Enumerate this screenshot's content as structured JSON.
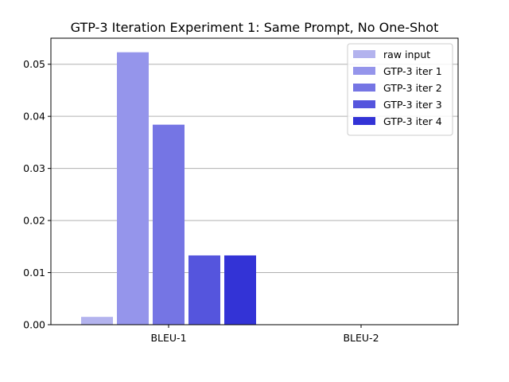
{
  "chart_data": {
    "type": "bar",
    "title": "GTP-3 Iteration Experiment 1: Same Prompt, No One-Shot",
    "categories": [
      "BLEU-1",
      "BLEU-2"
    ],
    "series": [
      {
        "name": "raw input",
        "color": "#b3b3ee",
        "values": [
          0.0015,
          0.0
        ]
      },
      {
        "name": "GTP-3 iter 1",
        "color": "#9595eb",
        "values": [
          0.0523,
          0.0
        ]
      },
      {
        "name": "GTP-3 iter 2",
        "color": "#7575e4",
        "values": [
          0.0384,
          0.0
        ]
      },
      {
        "name": "GTP-3 iter 3",
        "color": "#5555dd",
        "values": [
          0.0133,
          0.0
        ]
      },
      {
        "name": "GTP-3 iter 4",
        "color": "#3333d6",
        "values": [
          0.0133,
          0.0
        ]
      }
    ],
    "yticks": [
      "0.00",
      "0.01",
      "0.02",
      "0.03",
      "0.04",
      "0.05"
    ],
    "ylim": [
      0,
      0.055
    ],
    "xlabel": "",
    "ylabel": "",
    "grid": "horizontal",
    "legend_position": "top-right"
  }
}
